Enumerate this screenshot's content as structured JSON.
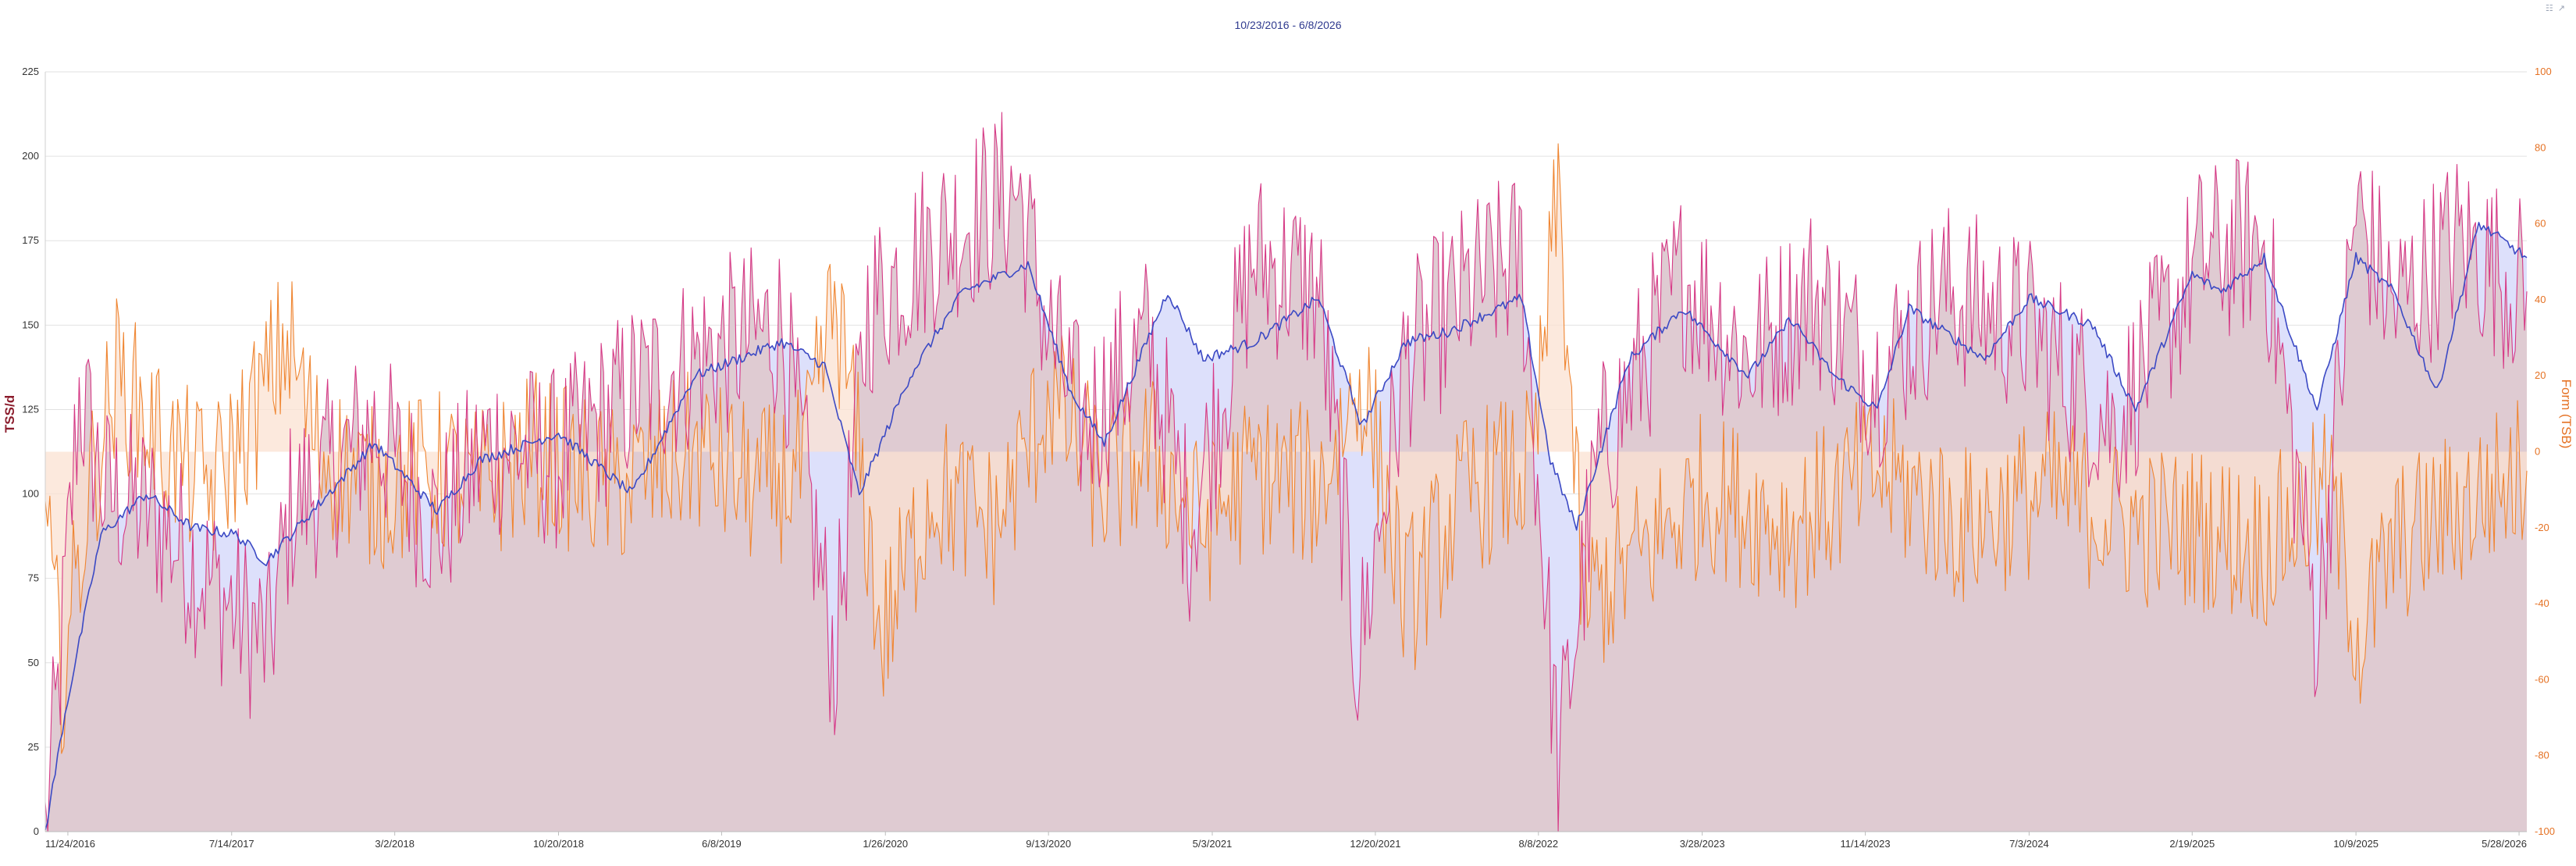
{
  "chart_data": {
    "type": "line",
    "title": "10/23/2016 - 6/8/2026",
    "x_range": [
      "2016-10-23",
      "2026-06-08"
    ],
    "x_tick_labels": [
      "11/24/2016",
      "7/14/2017",
      "3/2/2018",
      "10/20/2018",
      "6/8/2019",
      "1/26/2020",
      "9/13/2020",
      "5/3/2021",
      "12/20/2021",
      "8/8/2022",
      "3/28/2023",
      "11/14/2023",
      "7/3/2024",
      "2/19/2025",
      "10/9/2025",
      "5/28/2026"
    ],
    "y_left": {
      "label": "TSS/d",
      "range": [
        0,
        225
      ],
      "ticks": [
        0,
        25,
        50,
        75,
        100,
        125,
        150,
        175,
        200,
        225
      ]
    },
    "y_right": {
      "label": "Form (TSB)",
      "range": [
        -100,
        100
      ],
      "ticks": [
        -100,
        -80,
        -60,
        -40,
        -20,
        0,
        20,
        40,
        60,
        80,
        100
      ]
    },
    "grid": true,
    "colors": {
      "fitness": "#3b49c4",
      "fatigue": "#d63a86",
      "form": "#ef8531",
      "fitness_fill": "#dde0fb",
      "fatigue_fill": "#dfcbd2",
      "form_fill": "#fbe1d2",
      "left_axis": "#8b1c2c",
      "right_axis": "#e57224"
    },
    "series": [
      {
        "key": "fitness",
        "axis": "left",
        "x": [
          "2016-10-23",
          "2016-11-20",
          "2017-01-10",
          "2017-03-15",
          "2017-05-20",
          "2017-07-20",
          "2017-09-01",
          "2017-10-15",
          "2018-02-01",
          "2018-05-01",
          "2018-07-01",
          "2018-10-20",
          "2019-02-01",
          "2019-05-01",
          "2019-09-01",
          "2019-11-01",
          "2019-12-20",
          "2020-03-01",
          "2020-05-15",
          "2020-08-15",
          "2020-10-15",
          "2020-12-01",
          "2021-03-01",
          "2021-04-20",
          "2021-07-01",
          "2021-10-01",
          "2021-12-01",
          "2022-02-01",
          "2022-04-01",
          "2022-07-15",
          "2022-08-25",
          "2022-10-01",
          "2022-12-15",
          "2023-03-01",
          "2023-06-01",
          "2023-08-01",
          "2023-10-01",
          "2023-12-01",
          "2024-01-15",
          "2024-05-01",
          "2024-07-03",
          "2024-10-01",
          "2024-12-01",
          "2025-02-19",
          "2025-04-01",
          "2025-06-01",
          "2025-08-15",
          "2025-10-09",
          "2025-12-01",
          "2026-02-01",
          "2026-04-01",
          "2026-06-08"
        ],
        "y": [
          0,
          35,
          88,
          100,
          90,
          88,
          80,
          90,
          115,
          95,
          110,
          118,
          100,
          135,
          145,
          138,
          100,
          135,
          160,
          168,
          130,
          115,
          160,
          140,
          145,
          158,
          120,
          145,
          148,
          158,
          110,
          90,
          140,
          155,
          135,
          152,
          135,
          125,
          155,
          140,
          158,
          150,
          125,
          165,
          160,
          170,
          125,
          170,
          160,
          130,
          180,
          170
        ]
      },
      {
        "key": "fatigue",
        "axis": "left",
        "x": [
          "2016-10-23",
          "2016-11-10",
          "2016-12-10",
          "2017-01-15",
          "2017-03-20",
          "2017-05-20",
          "2017-07-20",
          "2017-09-05",
          "2017-10-05",
          "2018-02-01",
          "2018-05-01",
          "2018-07-15",
          "2018-10-20",
          "2019-02-01",
          "2019-05-01",
          "2019-09-01",
          "2019-11-15",
          "2020-01-01",
          "2020-04-01",
          "2020-08-01",
          "2020-09-10",
          "2020-11-01",
          "2021-02-01",
          "2021-04-01",
          "2021-07-01",
          "2021-10-01",
          "2021-11-25",
          "2022-02-01",
          "2022-05-01",
          "2022-07-15",
          "2022-09-05",
          "2022-11-01",
          "2023-03-01",
          "2023-06-01",
          "2023-09-01",
          "2023-12-01",
          "2024-03-01",
          "2024-07-01",
          "2024-11-01",
          "2025-03-01",
          "2025-06-01",
          "2025-08-15",
          "2025-10-09",
          "2025-12-01",
          "2026-03-01",
          "2026-06-08"
        ],
        "y": [
          0,
          40,
          130,
          100,
          95,
          80,
          65,
          55,
          95,
          120,
          90,
          115,
          110,
          130,
          140,
          150,
          50,
          155,
          175,
          190,
          150,
          120,
          145,
          90,
          170,
          160,
          50,
          140,
          160,
          170,
          20,
          110,
          165,
          140,
          160,
          135,
          160,
          150,
          120,
          170,
          175,
          60,
          185,
          155,
          175,
          160
        ]
      },
      {
        "key": "form",
        "axis": "right",
        "x": [
          "2016-10-23",
          "2016-11-15",
          "2016-12-25",
          "2017-02-01",
          "2017-04-15",
          "2017-06-15",
          "2017-08-15",
          "2017-10-01",
          "2017-11-15",
          "2018-02-01",
          "2018-05-01",
          "2018-07-01",
          "2018-09-15",
          "2019-01-01",
          "2019-05-01",
          "2019-08-01",
          "2019-10-01",
          "2019-11-15",
          "2019-12-15",
          "2020-01-20",
          "2020-04-01",
          "2020-07-01",
          "2020-09-15",
          "2020-12-01",
          "2021-02-01",
          "2021-04-20",
          "2021-07-01",
          "2021-10-01",
          "2021-12-01",
          "2022-02-01",
          "2022-05-01",
          "2022-08-01",
          "2022-09-05",
          "2022-10-10",
          "2022-12-15",
          "2023-04-01",
          "2023-08-01",
          "2023-12-01",
          "2024-04-01",
          "2024-08-01",
          "2024-12-01",
          "2025-03-01",
          "2025-06-01",
          "2025-09-01",
          "2025-10-15",
          "2025-12-01",
          "2026-03-01",
          "2026-06-08"
        ],
        "y": [
          -20,
          -60,
          -10,
          20,
          0,
          -10,
          10,
          30,
          0,
          -10,
          -5,
          -10,
          0,
          -10,
          0,
          -10,
          -5,
          40,
          5,
          -50,
          -10,
          -20,
          15,
          -10,
          0,
          -20,
          -5,
          -10,
          20,
          -40,
          -10,
          -5,
          70,
          -40,
          -30,
          -10,
          -20,
          -5,
          -20,
          -10,
          -20,
          -20,
          -25,
          -10,
          -50,
          -25,
          -15,
          -5
        ]
      }
    ]
  }
}
